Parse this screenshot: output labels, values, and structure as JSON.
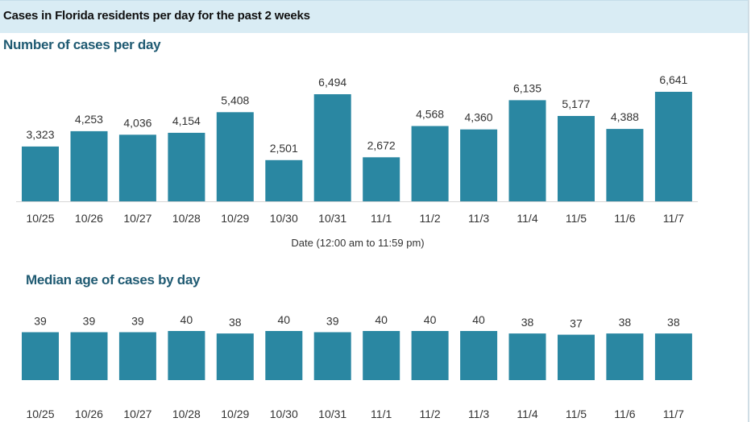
{
  "header": {
    "title": "Cases in Florida residents per day for the past 2 weeks"
  },
  "colors": {
    "bar": "#2a87a2",
    "header_band": "#d9ecf4",
    "section_title": "#1f5a72"
  },
  "chart_data": [
    {
      "type": "bar",
      "title": "Number of cases per day",
      "xlabel": "Date (12:00 am to 11:59 pm)",
      "ylabel": "",
      "categories": [
        "10/25",
        "10/26",
        "10/27",
        "10/28",
        "10/29",
        "10/30",
        "10/31",
        "11/1",
        "11/2",
        "11/3",
        "11/4",
        "11/5",
        "11/6",
        "11/7"
      ],
      "values": [
        3323,
        4253,
        4036,
        4154,
        5408,
        2501,
        6494,
        2672,
        4568,
        4360,
        6135,
        5177,
        4388,
        6641
      ],
      "value_labels": [
        "3,323",
        "4,253",
        "4,036",
        "4,154",
        "5,408",
        "2,501",
        "6,494",
        "2,672",
        "4,568",
        "4,360",
        "6,135",
        "5,177",
        "4,388",
        "6,641"
      ],
      "ylim": [
        0,
        6641
      ],
      "grid": false,
      "legend": "none"
    },
    {
      "type": "bar",
      "title": "Median age of cases by day",
      "xlabel": "",
      "ylabel": "",
      "categories": [
        "10/25",
        "10/26",
        "10/27",
        "10/28",
        "10/29",
        "10/30",
        "10/31",
        "11/1",
        "11/2",
        "11/3",
        "11/4",
        "11/5",
        "11/6",
        "11/7"
      ],
      "values": [
        39,
        39,
        39,
        40,
        38,
        40,
        39,
        40,
        40,
        40,
        38,
        37,
        38,
        38
      ],
      "value_labels": [
        "39",
        "39",
        "39",
        "40",
        "38",
        "40",
        "39",
        "40",
        "40",
        "40",
        "38",
        "37",
        "38",
        "38"
      ],
      "ylim": [
        0,
        40
      ],
      "grid": false,
      "legend": "none"
    }
  ]
}
